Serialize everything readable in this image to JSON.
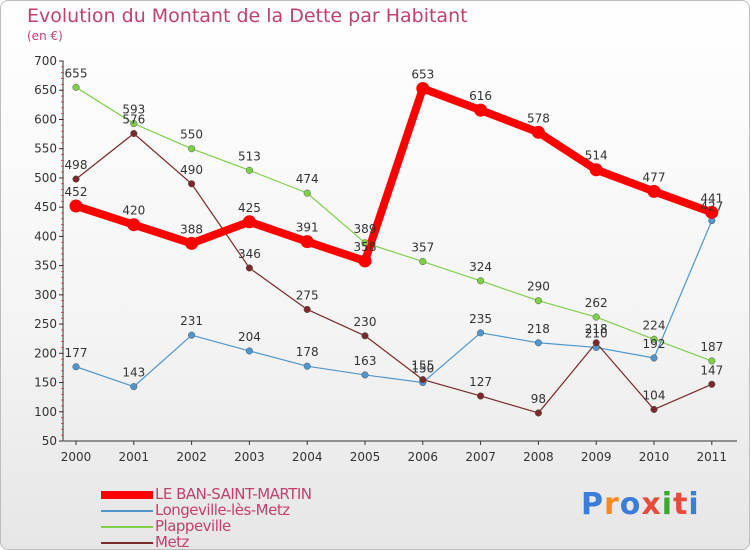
{
  "header": {
    "title": "Evolution du Montant de la Dette par Habitant",
    "subtitle": "(en €)"
  },
  "logo": {
    "text": "Proxiti",
    "colors": [
      "#3b7dd8",
      "#f28c1e",
      "#3b7dd8",
      "#e84b3c",
      "#3fa535",
      "#e84b3c",
      "#3b7dd8"
    ]
  },
  "chart_data": {
    "type": "line",
    "title": "Evolution du Montant de la Dette par Habitant",
    "ylabel": "(en €)",
    "xlabel": "",
    "x": [
      "2000",
      "2001",
      "2002",
      "2003",
      "2004",
      "2005",
      "2006",
      "2007",
      "2008",
      "2009",
      "2010",
      "2011"
    ],
    "ylim": [
      50,
      700
    ],
    "yticks": [
      50,
      100,
      150,
      200,
      250,
      300,
      350,
      400,
      450,
      500,
      550,
      600,
      650,
      700
    ],
    "grid": false,
    "legend_position": "bottom-left",
    "series": [
      {
        "name": "LE BAN-SAINT-MARTIN",
        "color": "#ff0000",
        "values": [
          452,
          420,
          388,
          425,
          391,
          358,
          653,
          616,
          578,
          514,
          477,
          441
        ],
        "labels": [
          "452",
          "420",
          "388",
          "425",
          "391",
          "358",
          "653",
          "616",
          "578",
          "514",
          "477",
          "441"
        ]
      },
      {
        "name": "Longeville-lès-Metz",
        "color": "#4f96cc",
        "values": [
          177,
          143,
          231,
          204,
          178,
          163,
          150,
          235,
          218,
          210,
          192,
          427
        ],
        "labels": [
          "177",
          "143",
          "231",
          "204",
          "178",
          "163",
          "150",
          "235",
          "218",
          "210",
          "192",
          "427"
        ]
      },
      {
        "name": "Plappeville",
        "color": "#7ed04a",
        "values": [
          655,
          593,
          550,
          513,
          474,
          389,
          357,
          324,
          290,
          262,
          224,
          187
        ],
        "labels": [
          "655",
          "593",
          "550",
          "513",
          "474",
          "389",
          "357",
          "324",
          "290",
          "262",
          "224",
          "187"
        ]
      },
      {
        "name": "Metz",
        "color": "#7a2a2a",
        "values": [
          498,
          576,
          490,
          346,
          275,
          230,
          155,
          127,
          98,
          218,
          104,
          147
        ],
        "labels": [
          "498",
          "576",
          "490",
          "346",
          "275",
          "230",
          "155",
          "127",
          "98",
          "218",
          "104",
          "147"
        ]
      }
    ]
  }
}
